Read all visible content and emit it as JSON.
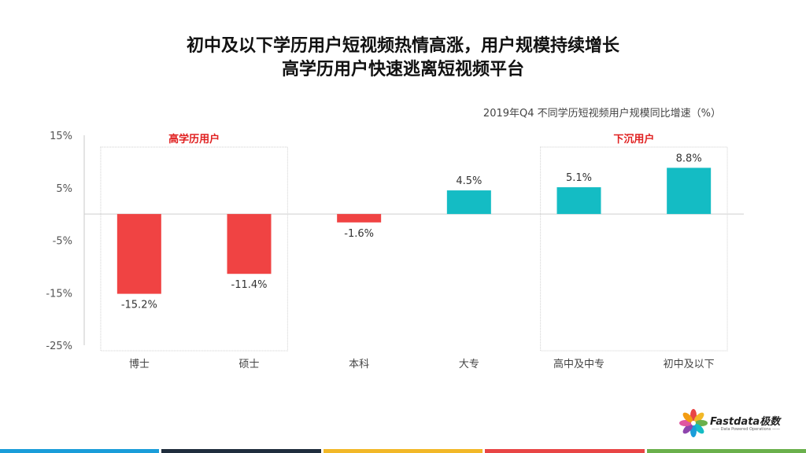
{
  "title": {
    "line1": "初中及以下学历用户短视频热情高涨，用户规模持续增长",
    "line2": "高学历用户快速逃离短视频平台"
  },
  "chart_caption": "2019年Q4 不同学历短视频用户规模同比增速（%）",
  "chart_data": {
    "type": "bar",
    "categories": [
      "博士",
      "硕士",
      "本科",
      "大专",
      "高中及中专",
      "初中及以下"
    ],
    "values": [
      -15.2,
      -11.4,
      -1.6,
      4.5,
      5.1,
      8.8
    ],
    "value_labels": [
      "-15.2%",
      "-11.4%",
      "-1.6%",
      "4.5%",
      "5.1%",
      "8.8%"
    ],
    "yticks": [
      15,
      5,
      -5,
      -15,
      -25
    ],
    "ytick_labels": [
      "15%",
      "5%",
      "-5%",
      "-15%",
      "-25%"
    ],
    "ylim": [
      -25,
      15
    ],
    "title": "2019年Q4 不同学历短视频用户规模同比增速（%）",
    "xlabel": "",
    "ylabel": "",
    "grid": false,
    "groups": [
      {
        "label": "高学历用户",
        "categories": [
          "博士",
          "硕士"
        ]
      },
      {
        "label": "下沉用户",
        "categories": [
          "高中及中专",
          "初中及以下"
        ]
      }
    ],
    "colors": {
      "negative": "#f04343",
      "positive": "#14bcc4",
      "group_label": "#e02020"
    }
  },
  "logo": {
    "name": "Fastdata极数",
    "tagline": "—— Data Powered Operations ——"
  },
  "footer_colors": [
    "#1a9dd9",
    "#1f2d3d",
    "#f2b827",
    "#e84545",
    "#6ab04c"
  ]
}
